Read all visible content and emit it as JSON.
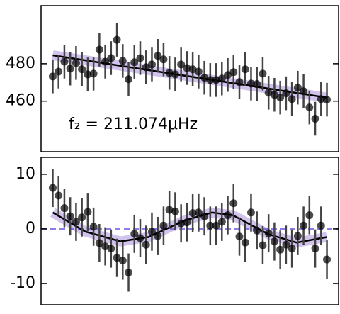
{
  "chart_data": [
    {
      "type": "scatter",
      "annotation": "f₂ = 211.074μHz",
      "x": [
        0,
        1,
        2,
        3,
        4,
        5,
        6,
        7,
        8,
        9,
        10,
        11,
        12,
        13,
        14,
        15,
        16,
        17,
        18,
        19,
        20,
        21,
        22,
        23,
        24,
        25,
        26,
        27,
        28,
        29,
        30,
        31,
        32,
        33,
        34,
        35,
        36,
        37,
        38,
        39,
        40,
        41,
        42,
        43,
        44,
        45,
        46,
        47
      ],
      "values": [
        473.2,
        475.8,
        481.1,
        477.4,
        480.4,
        477.0,
        474.3,
        474.7,
        487.5,
        481.1,
        483.0,
        492.8,
        481.5,
        471.7,
        480.8,
        483.0,
        478.1,
        479.6,
        484.2,
        482.3,
        475.1,
        474.3,
        479.6,
        477.7,
        477.0,
        475.8,
        472.5,
        471.3,
        471.3,
        472.1,
        474.0,
        475.5,
        470.2,
        477.0,
        469.4,
        469.1,
        474.7,
        464.5,
        463.4,
        461.9,
        464.2,
        461.1,
        467.2,
        465.3,
        456.6,
        450.6,
        461.1,
        460.8
      ],
      "error": 9,
      "color": "#000000",
      "fit": {
        "x": [
          0,
          47
        ],
        "values": [
          484.5,
          461.9
        ],
        "color": "#000000",
        "band_color": "#7b52c9"
      },
      "xlim": [
        -2,
        49
      ],
      "ylim": [
        433,
        511
      ],
      "yticks": [
        460,
        480
      ]
    },
    {
      "type": "scatter",
      "x": [
        0,
        1,
        2,
        3,
        4,
        5,
        6,
        7,
        8,
        9,
        10,
        11,
        12,
        13,
        14,
        15,
        16,
        17,
        18,
        19,
        20,
        21,
        22,
        23,
        24,
        25,
        26,
        27,
        28,
        29,
        30,
        31,
        32,
        33,
        34,
        35,
        36,
        37,
        38,
        39,
        40,
        41,
        42,
        43,
        44,
        45,
        46,
        47
      ],
      "values": [
        7.5,
        6.1,
        3.8,
        2.3,
        1.3,
        2.1,
        3.1,
        0.4,
        -2.6,
        -3.2,
        -3.6,
        -5.3,
        -5.8,
        -8.0,
        -0.9,
        -1.7,
        -2.9,
        -0.5,
        -1.3,
        0.6,
        3.5,
        3.2,
        1.0,
        1.2,
        2.9,
        3.0,
        2.3,
        0.6,
        0.6,
        1.3,
        2.5,
        4.7,
        -1.4,
        -2.5,
        3.0,
        -0.3,
        -3.0,
        -0.8,
        -2.3,
        -3.8,
        -2.9,
        -3.6,
        -1.3,
        0.6,
        2.5,
        -3.6,
        0.6,
        -5.6
      ],
      "error": 3.5,
      "color": "#000000",
      "fit": {
        "x": [
          0,
          5.6,
          11.6,
          16.4,
          22.5,
          27.3,
          30.9,
          37,
          41.8,
          47
        ],
        "values": [
          3,
          -0.5,
          -2.3,
          -1.5,
          1.5,
          3,
          2.5,
          -1,
          -2.5,
          -1.5
        ],
        "color": "#000000",
        "band_color": "#7b52c9"
      },
      "hline": 0,
      "hline_color": "#6f5fe0",
      "xlim": [
        -2,
        49
      ],
      "ylim": [
        -13.9,
        13.1
      ],
      "yticks": [
        -10,
        0,
        10
      ]
    }
  ]
}
